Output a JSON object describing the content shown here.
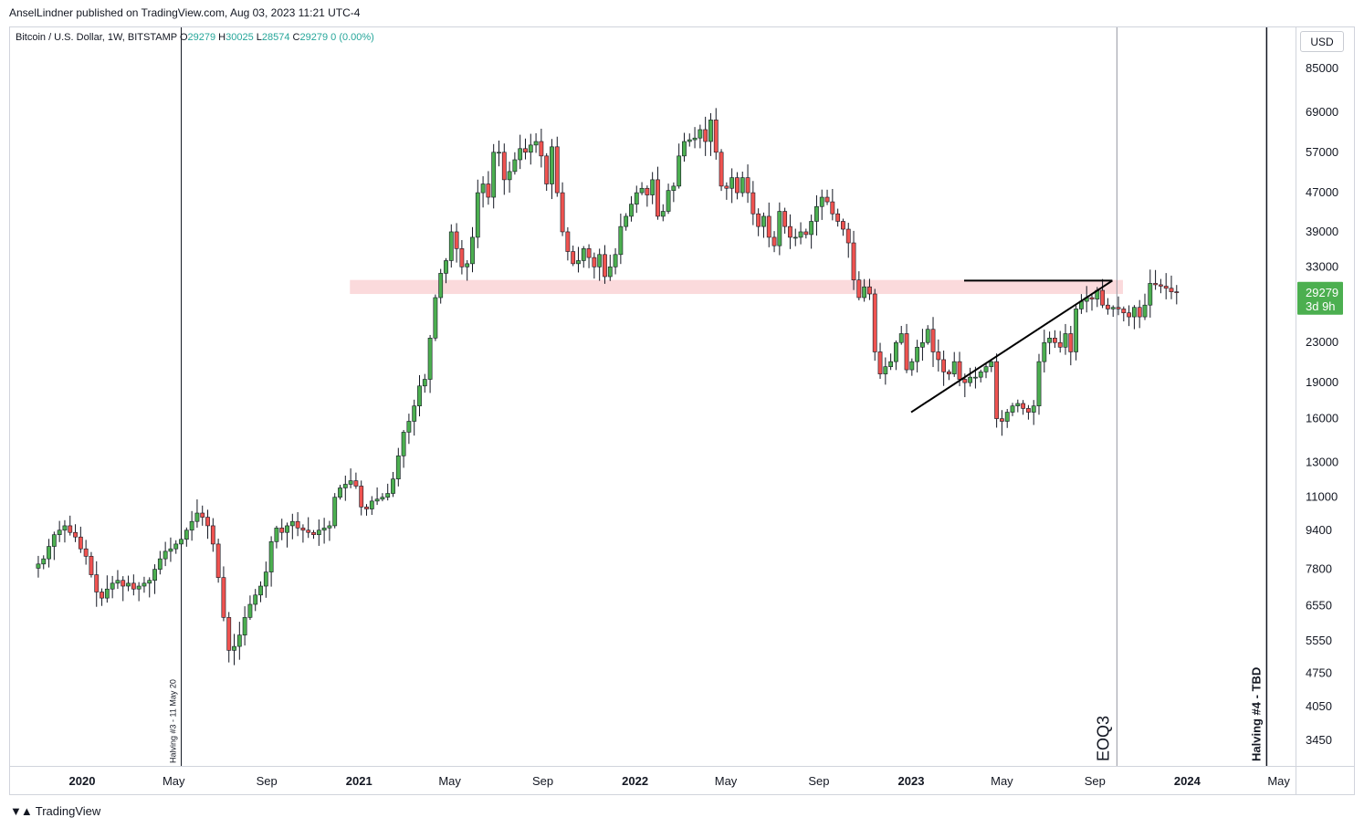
{
  "header": {
    "published_by": "AnselLindner published on TradingView.com, Aug 03, 2023 11:21 UTC-4"
  },
  "symbol": {
    "name": "Bitcoin / U.S. Dollar, 1W, BITSTAMP",
    "open_label": "O",
    "open": "29279",
    "high_label": "H",
    "high": "30025",
    "low_label": "L",
    "low": "28574",
    "close_label": "C",
    "close": "29279",
    "change": "0 (0.00%)"
  },
  "currency": "USD",
  "brand": "TradingView",
  "colors": {
    "up": "#4caf50",
    "down": "#ef5350",
    "last_price_badge": "#4caf50"
  },
  "chart_data": {
    "type": "candlestick",
    "timeframe": "1W",
    "y_scale": "log",
    "ylim": [
      3000,
      95000
    ],
    "y_ticks": [
      85000,
      69000,
      57000,
      47000,
      39000,
      33000,
      23000,
      19000,
      16000,
      13000,
      11000,
      9400,
      7800,
      6550,
      5550,
      4750,
      4050,
      3450
    ],
    "x_ticks": [
      {
        "label": "2020",
        "bold": true,
        "date": "2020-01-01"
      },
      {
        "label": "May",
        "bold": false,
        "date": "2020-05-01"
      },
      {
        "label": "Sep",
        "bold": false,
        "date": "2020-09-01"
      },
      {
        "label": "2021",
        "bold": true,
        "date": "2021-01-01"
      },
      {
        "label": "May",
        "bold": false,
        "date": "2021-05-01"
      },
      {
        "label": "Sep",
        "bold": false,
        "date": "2021-09-01"
      },
      {
        "label": "2022",
        "bold": true,
        "date": "2022-01-01"
      },
      {
        "label": "May",
        "bold": false,
        "date": "2022-05-01"
      },
      {
        "label": "Sep",
        "bold": false,
        "date": "2022-09-01"
      },
      {
        "label": "2023",
        "bold": true,
        "date": "2023-01-01"
      },
      {
        "label": "May",
        "bold": false,
        "date": "2023-05-01"
      },
      {
        "label": "Sep",
        "bold": false,
        "date": "2023-09-01"
      },
      {
        "label": "2024",
        "bold": true,
        "date": "2024-01-01"
      },
      {
        "label": "May",
        "bold": false,
        "date": "2024-05-01"
      }
    ],
    "candles_close": [
      8000,
      8200,
      8700,
      9200,
      9400,
      9600,
      9300,
      9100,
      8600,
      8300,
      7600,
      7000,
      6800,
      7100,
      7300,
      7400,
      7200,
      7300,
      7100,
      7200,
      7300,
      7400,
      7800,
      8200,
      8500,
      8600,
      8800,
      9000,
      9400,
      9800,
      10200,
      10000,
      9600,
      8800,
      7500,
      6200,
      5300,
      5400,
      5700,
      6200,
      6600,
      6900,
      7200,
      7700,
      8900,
      9500,
      9300,
      9600,
      9800,
      9500,
      9400,
      9300,
      9200,
      9400,
      9500,
      9600,
      11000,
      11500,
      11700,
      11900,
      11600,
      10500,
      10400,
      10800,
      10900,
      11000,
      11200,
      12000,
      13400,
      15000,
      15800,
      17000,
      18700,
      19300,
      23500,
      28500,
      32000,
      34000,
      39000,
      36000,
      33000,
      33500,
      38000,
      47000,
      49000,
      46000,
      57000,
      57000,
      50000,
      52000,
      55000,
      58000,
      57000,
      59000,
      60000,
      56000,
      49000,
      58500,
      47000,
      39000,
      35500,
      33500,
      34000,
      36000,
      34500,
      33000,
      35000,
      31500,
      33000,
      35000,
      40000,
      42000,
      44500,
      47000,
      48000,
      46500,
      50000,
      42000,
      43000,
      47500,
      48500,
      56000,
      60000,
      60500,
      61000,
      63500,
      60000,
      66500,
      57000,
      48500,
      48000,
      50500,
      47000,
      50500,
      47000,
      42500,
      40000,
      42000,
      38000,
      36500,
      43000,
      40000,
      38000,
      38000,
      39000,
      38500,
      41000,
      44000,
      46000,
      45000,
      42500,
      41000,
      39500,
      37000,
      31000,
      28500,
      30000,
      29000,
      22000,
      19800,
      20500,
      21000,
      23000,
      24000,
      20200,
      21000,
      22500,
      23000,
      24500,
      22000,
      21200,
      20000,
      19800,
      21000,
      19300,
      19000,
      19500,
      19500,
      20000,
      20500,
      21000,
      16000,
      15800,
      16500,
      17000,
      17200,
      16800,
      16500,
      17000,
      21000,
      23000,
      23500,
      23000,
      22500,
      24000,
      22000,
      27000,
      28000,
      28500,
      28300,
      29500,
      27500,
      27000,
      27200,
      27000,
      26500,
      26000,
      27200,
      26000,
      27500,
      30500,
      30300,
      30100,
      29800,
      29300,
      29279
    ],
    "resistance_band": {
      "low": 29000,
      "high": 31000,
      "start": "2020-12-20",
      "end": "2023-10-08"
    },
    "trendlines": [
      {
        "from": {
          "date": "2023-01-01",
          "price": 16500
        },
        "to": {
          "date": "2023-09-24",
          "price": 30900
        }
      },
      {
        "from": {
          "date": "2023-03-12",
          "price": 30900
        },
        "to": {
          "date": "2023-09-24",
          "price": 30900
        }
      }
    ],
    "vertical_markers": [
      {
        "date": "2020-05-11",
        "label": "Halving #3 - 11 May 20"
      },
      {
        "date": "2023-09-30",
        "label": "EOQ3"
      },
      {
        "date": "2024-04-15",
        "label": "Halving #4 - TBD"
      }
    ],
    "last_price": {
      "value": "29279",
      "countdown": "3d 9h"
    }
  }
}
